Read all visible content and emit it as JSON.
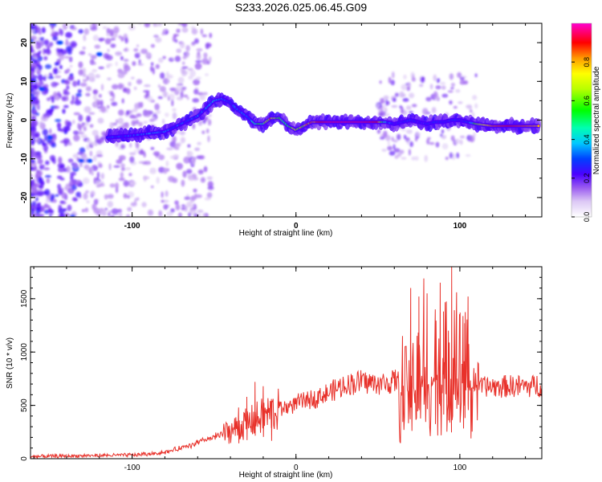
{
  "figure_title": "S233.2026.025.06.45.G09",
  "chart_data": [
    {
      "type": "heatmap",
      "title": "S233.2026.025.06.45.G09",
      "xlabel": "Height of straight line (km)",
      "ylabel": "Frequency (Hz)",
      "xlim": [
        -162,
        150
      ],
      "ylim": [
        -25,
        25
      ],
      "x_ticks": [
        -100,
        0,
        100
      ],
      "x_tick_labels": [
        "-100",
        "0",
        "100"
      ],
      "y_ticks": [
        -20,
        -10,
        0,
        10,
        20
      ],
      "y_tick_labels": [
        "-20",
        "-10",
        "0",
        "10",
        "20"
      ],
      "ridge": {
        "description_points_x_km": [
          -115,
          -100,
          -90,
          -80,
          -70,
          -60,
          -55,
          -50,
          -45,
          -40,
          -35,
          -30,
          -25,
          -20,
          -15,
          -10,
          -5,
          0,
          5,
          10,
          20,
          30,
          40,
          50,
          55,
          60,
          65,
          70,
          75,
          80,
          85,
          90,
          95,
          100,
          105,
          110,
          120,
          130,
          140,
          148
        ],
        "frequency_hz": [
          -4.5,
          -4,
          -3.5,
          -3,
          -1,
          1,
          3,
          5,
          5.5,
          4.5,
          2.5,
          1,
          -1,
          -1,
          0.5,
          0.5,
          -1.5,
          -2.5,
          -1.5,
          -0.5,
          -0.5,
          -0.5,
          -0.5,
          -0.5,
          -0.5,
          -1,
          -0.5,
          0,
          -0.5,
          -1,
          -0.5,
          -0.5,
          0,
          0,
          -0.5,
          -1,
          -1.5,
          -1.5,
          -1.5,
          -1.5
        ],
        "amplitude": [
          0.3,
          0.3,
          0.35,
          0.35,
          0.3,
          0.35,
          0.35,
          0.4,
          0.35,
          0.3,
          0.35,
          0.35,
          0.45,
          0.55,
          0.8,
          0.6,
          0.5,
          0.7,
          0.7,
          0.85,
          0.95,
          0.95,
          0.95,
          0.9,
          0.4,
          0.25,
          0.25,
          0.3,
          0.25,
          0.25,
          0.3,
          0.25,
          0.3,
          0.25,
          0.3,
          0.6,
          0.85,
          0.9,
          0.85,
          0.8
        ]
      },
      "colorbar": {
        "label": "Normalized spectral amplitude",
        "range": [
          0,
          1
        ],
        "ticks": [
          0.0,
          0.2,
          0.4,
          0.6,
          0.8
        ],
        "tick_labels": [
          "0.0",
          "0.2",
          "0.4",
          "0.6",
          "0.8"
        ]
      }
    },
    {
      "type": "line",
      "xlabel": "Height of straight line (km)",
      "ylabel": "SNR (10 * v/v)",
      "xlim": [
        -162,
        150
      ],
      "ylim": [
        0,
        1800
      ],
      "x_ticks": [
        -100,
        0,
        100
      ],
      "x_tick_labels": [
        "-100",
        "0",
        "100"
      ],
      "y_ticks": [
        0,
        500,
        1000,
        1500
      ],
      "y_tick_labels": [
        "0",
        "500",
        "1000",
        "1500"
      ],
      "series": [
        {
          "name": "SNR",
          "color": "#e8312a",
          "x": [
            -162,
            -140,
            -120,
            -100,
            -90,
            -80,
            -70,
            -60,
            -50,
            -40,
            -30,
            -20,
            -10,
            0,
            10,
            20,
            30,
            40,
            50,
            60,
            62,
            65,
            70,
            75,
            80,
            85,
            90,
            95,
            100,
            105,
            110,
            112,
            120,
            130,
            140,
            150
          ],
          "values": [
            20,
            25,
            30,
            35,
            45,
            60,
            100,
            150,
            200,
            260,
            330,
            400,
            460,
            520,
            560,
            620,
            690,
            730,
            700,
            720,
            760,
            900,
            1100,
            1200,
            1300,
            1250,
            1400,
            1250,
            1350,
            1200,
            1000,
            680,
            670,
            680,
            680,
            690
          ],
          "peaks_x": [
            -35,
            -30,
            -25,
            -20,
            -15,
            65,
            70,
            75,
            78,
            80,
            85,
            88,
            90,
            93,
            95,
            98,
            100,
            103,
            105
          ],
          "peaks_y": [
            480,
            580,
            720,
            680,
            560,
            1150,
            1600,
            1520,
            1690,
            1550,
            1400,
            1650,
            1380,
            1200,
            1800,
            1560,
            1130,
            1270,
            1520
          ]
        }
      ]
    }
  ]
}
